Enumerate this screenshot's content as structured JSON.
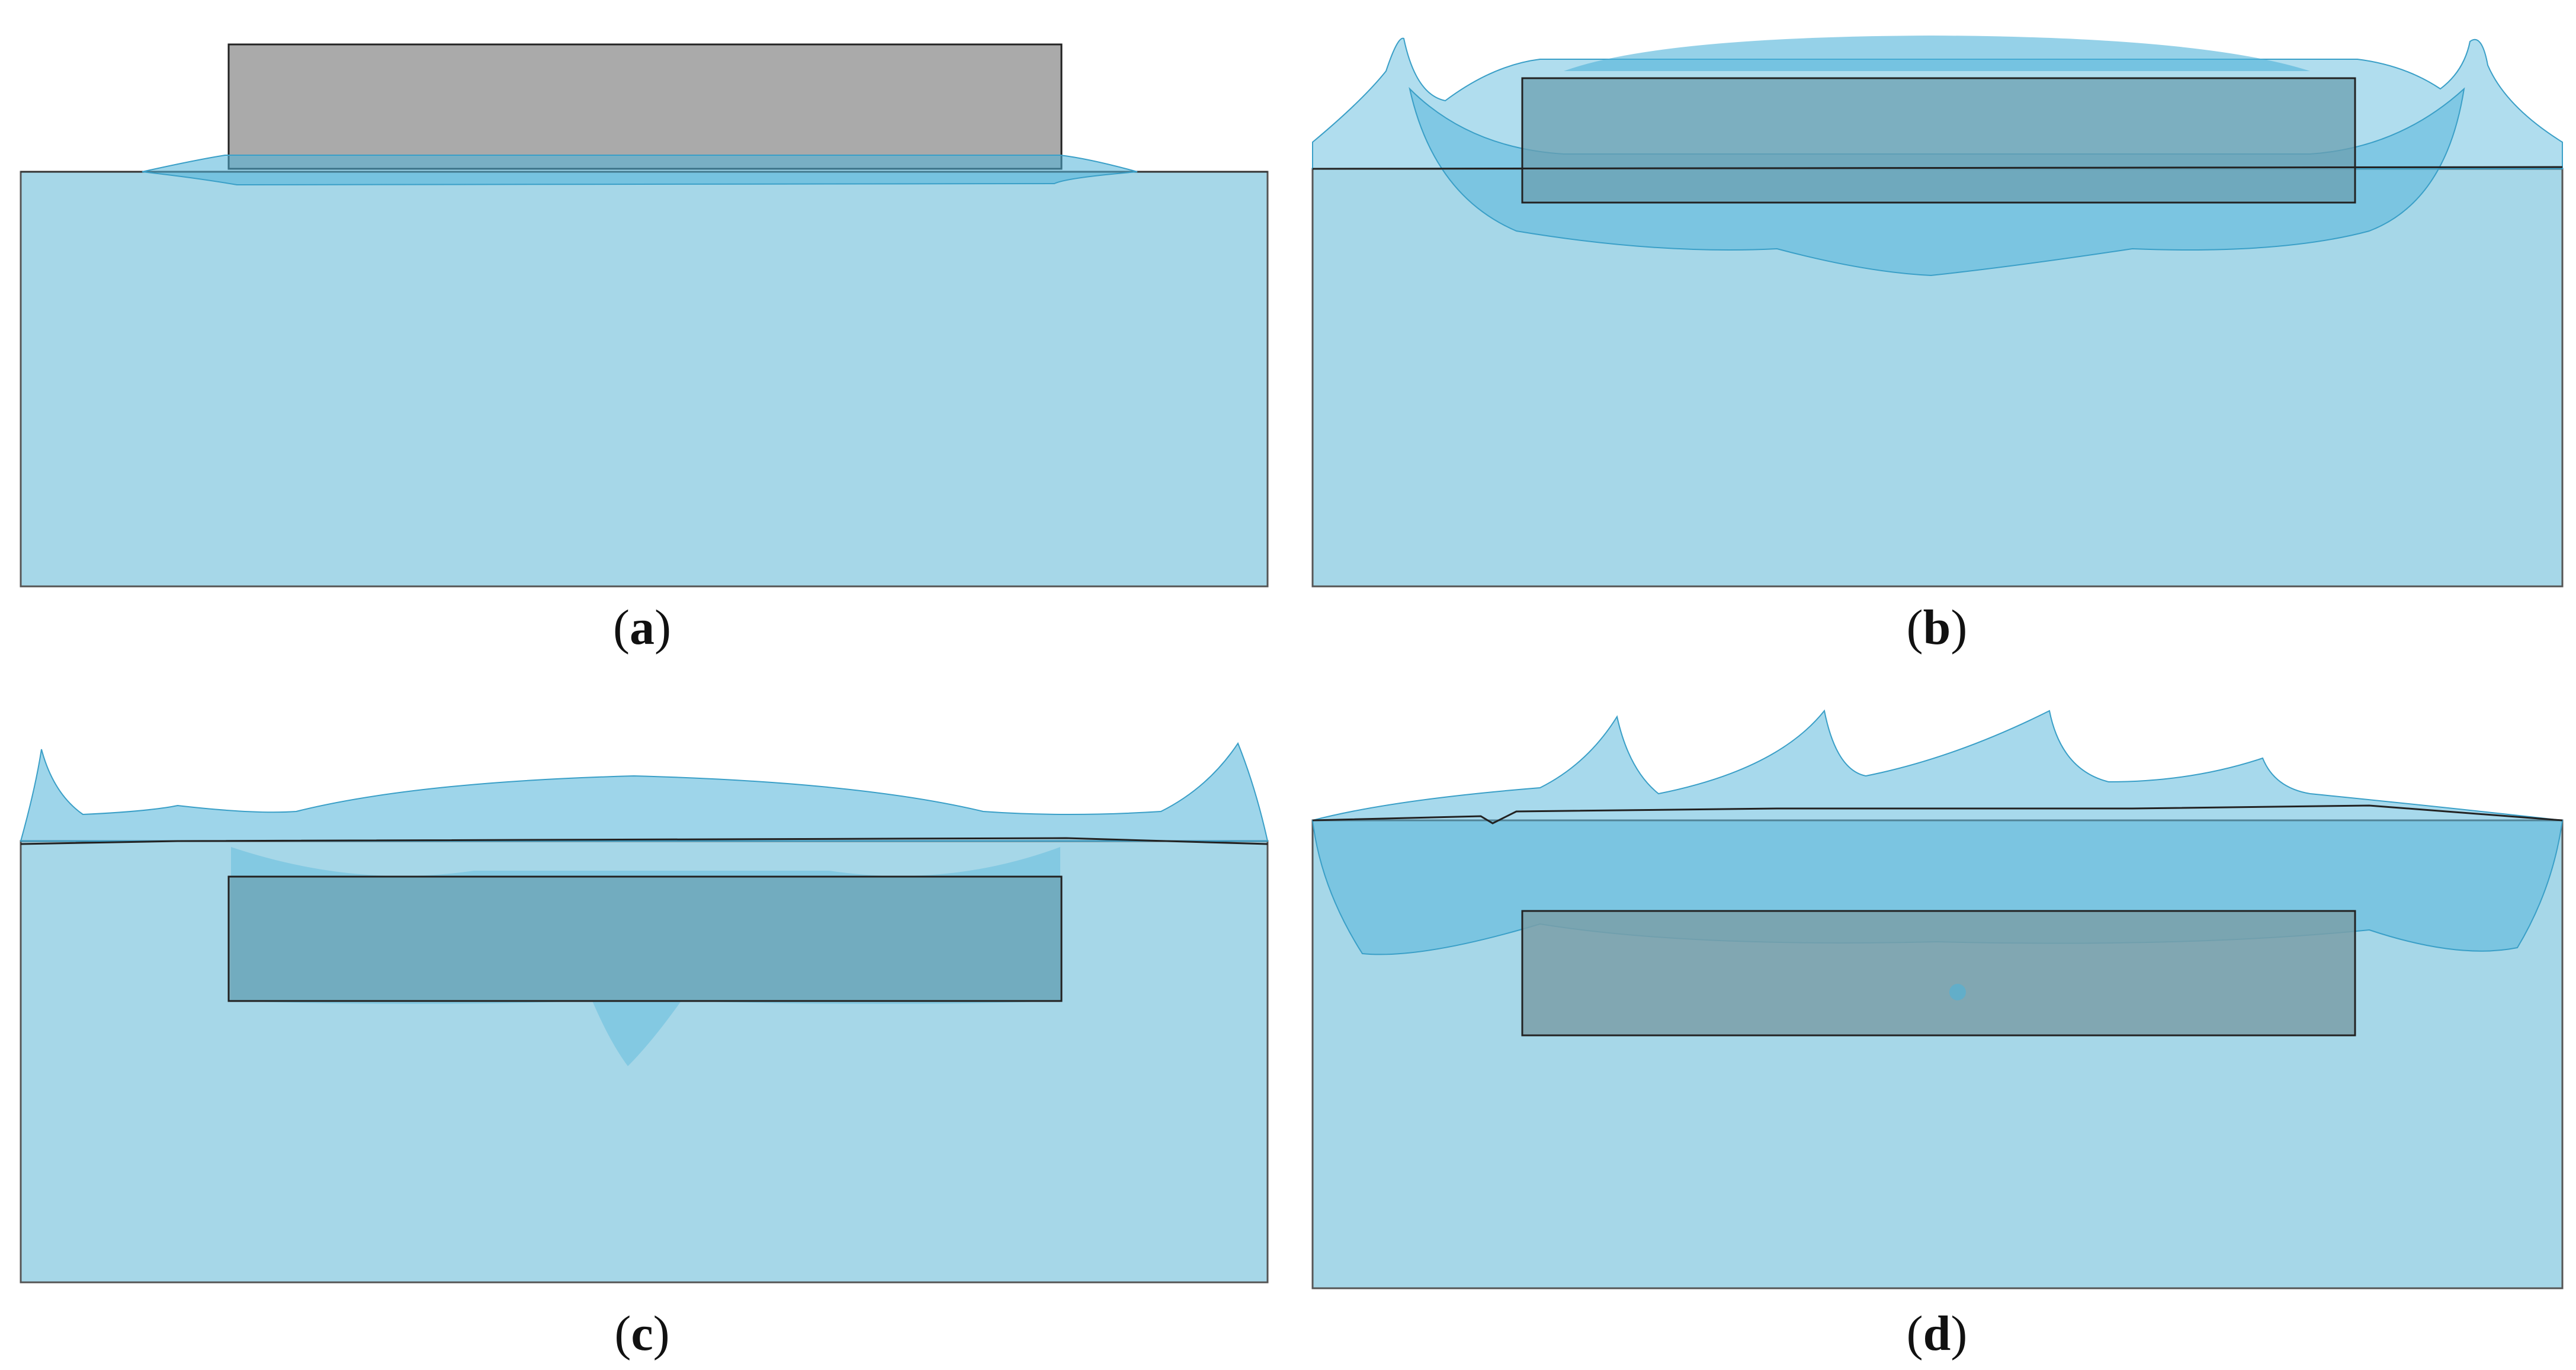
{
  "panels": [
    {
      "id": "a",
      "caption_open": "(",
      "caption_letter": "a",
      "caption_close": ")"
    },
    {
      "id": "b",
      "caption_open": "(",
      "caption_letter": "b",
      "caption_close": ")"
    },
    {
      "id": "c",
      "caption_open": "(",
      "caption_letter": "c",
      "caption_close": ")"
    },
    {
      "id": "d",
      "caption_open": "(",
      "caption_letter": "d",
      "caption_close": ")"
    }
  ],
  "colors": {
    "water": "#a6d7e8",
    "water_edge": "#555555",
    "splash": "#4fb3d9",
    "box": "#aaaaaa",
    "box_submerged": "#6b9fb0",
    "outline": "#222222"
  }
}
